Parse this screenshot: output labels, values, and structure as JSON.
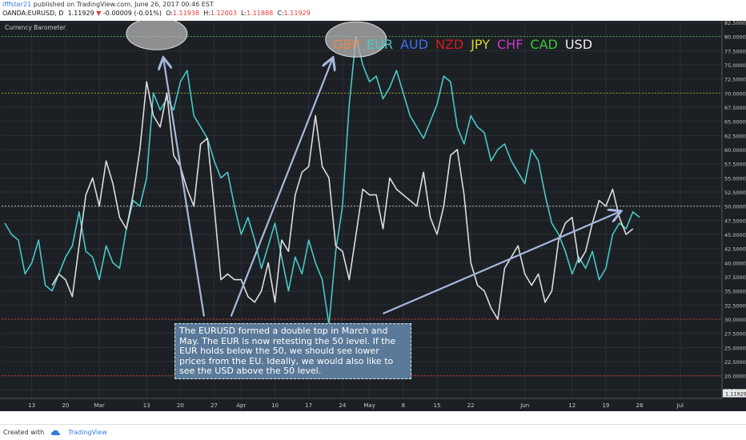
{
  "header": {
    "user": "ifffster21",
    "published": "published on TradingView.com, June 26, 2017 00:46 EST",
    "symbol": "OANDA:EURUSD, D",
    "price": "1.11929",
    "change": "-0.00009 (-0.01%)",
    "open_label": "O:",
    "open": "1.11938",
    "high_label": "H:",
    "high": "1.12003",
    "low_label": "L:",
    "low": "1.11888",
    "close_label": "C:",
    "close": "1.11929"
  },
  "footer": {
    "created_with": "Created with",
    "brand": "TradingView"
  },
  "chart_data": {
    "type": "line",
    "indicator_title": "Currency Barometer",
    "legend": [
      {
        "name": "GBP",
        "color": "#e8874a"
      },
      {
        "name": "EUR",
        "color": "#48c9c6"
      },
      {
        "name": "AUD",
        "color": "#3f6fe8"
      },
      {
        "name": "NZD",
        "color": "#d21e1e"
      },
      {
        "name": "JPY",
        "color": "#d8d828"
      },
      {
        "name": "CHF",
        "color": "#c83ac8"
      },
      {
        "name": "CAD",
        "color": "#38c838"
      },
      {
        "name": "USD",
        "color": "#eeeeee"
      }
    ],
    "ylim": [
      16,
      82.5
    ],
    "y_ticks": [
      "82.5000",
      "80.0000",
      "77.5000",
      "75.0000",
      "72.5000",
      "70.0000",
      "67.5000",
      "65.0000",
      "62.5000",
      "60.0000",
      "57.5000",
      "55.0000",
      "52.5000",
      "50.0000",
      "47.5000",
      "45.0000",
      "42.5000",
      "40.0000",
      "37.5000",
      "35.0000",
      "32.5000",
      "30.0000",
      "27.5000",
      "25.0000",
      "22.5000",
      "20.0000",
      "17.5000"
    ],
    "last_price_label": "1.11929",
    "levels": [
      {
        "value": 80,
        "color": "#3fa43f"
      },
      {
        "value": 70,
        "color": "#9a8a2a"
      },
      {
        "value": 50,
        "color": "#bbbbbb"
      },
      {
        "value": 30,
        "color": "#c0392b"
      },
      {
        "value": 20,
        "color": "#c0392b"
      }
    ],
    "x_ticks": [
      {
        "label": "13",
        "i": 4
      },
      {
        "label": "20",
        "i": 9
      },
      {
        "label": "Mar",
        "i": 14
      },
      {
        "label": "13",
        "i": 21
      },
      {
        "label": "20",
        "i": 26
      },
      {
        "label": "27",
        "i": 31
      },
      {
        "label": "Apr",
        "i": 35
      },
      {
        "label": "10",
        "i": 40
      },
      {
        "label": "17",
        "i": 45
      },
      {
        "label": "24",
        "i": 50
      },
      {
        "label": "May",
        "i": 54
      },
      {
        "label": "8",
        "i": 59
      },
      {
        "label": "15",
        "i": 64
      },
      {
        "label": "22",
        "i": 69
      },
      {
        "label": "Jun",
        "i": 77
      },
      {
        "label": "12",
        "i": 84
      },
      {
        "label": "19",
        "i": 89
      },
      {
        "label": "26",
        "i": 94
      },
      {
        "label": "Jul",
        "i": 100
      }
    ],
    "n_points": 105,
    "series": [
      {
        "name": "EUR",
        "color": "#48c9c6",
        "values": [
          47,
          45,
          44,
          38,
          40,
          44,
          36,
          35,
          38,
          41,
          43,
          49,
          42,
          41,
          37,
          43,
          40,
          39,
          46,
          51,
          50,
          55,
          70,
          67,
          69,
          67,
          72,
          74,
          66,
          64,
          62,
          58,
          55,
          56,
          50,
          45,
          48,
          44,
          39,
          43,
          47,
          41,
          35,
          41,
          38,
          44,
          40,
          37,
          29,
          42,
          50,
          68,
          80,
          75,
          72,
          73,
          69,
          71,
          74,
          70,
          66,
          64,
          62,
          65,
          68,
          73,
          72,
          64,
          61,
          66,
          64,
          63,
          58,
          60,
          61,
          58,
          56,
          54,
          60,
          58,
          52,
          47,
          45,
          42,
          38,
          41,
          39,
          42,
          37,
          39,
          45,
          47,
          46,
          49,
          48
        ],
        "start_i": 0
      },
      {
        "name": "USD",
        "color": "#dcdcdc",
        "values": [
          36,
          38,
          37,
          34,
          43,
          52,
          55,
          50,
          58,
          54,
          48,
          46,
          52,
          60,
          72,
          66,
          64,
          70,
          59,
          57,
          53,
          50,
          61,
          62,
          50,
          37,
          38,
          37,
          37,
          34,
          33,
          35,
          40,
          33,
          44,
          42,
          52,
          56,
          57,
          66,
          57,
          55,
          43,
          42,
          37,
          45,
          53,
          52,
          52,
          46,
          55,
          53,
          52,
          51,
          50,
          56,
          48,
          45,
          50,
          59,
          60,
          52,
          40,
          36,
          35,
          32,
          30,
          39,
          41,
          43,
          38,
          36,
          38,
          33,
          35,
          44,
          47,
          48,
          40,
          42,
          47,
          51,
          50,
          53,
          48,
          45,
          46
        ],
        "start_i": 7
      }
    ],
    "ellipses": [
      {
        "cx_i": 22.5,
        "cy_v": 80.5,
        "rx": 38,
        "ry": 20
      },
      {
        "cx_i": 52,
        "cy_v": 79.5,
        "rx": 38,
        "ry": 22
      }
    ],
    "arrows": [
      {
        "from_i": 29.5,
        "from_v": 30.5,
        "to_i": 23.5,
        "to_v": 76
      },
      {
        "from_i": 33.5,
        "from_v": 30.5,
        "to_i": 48.5,
        "to_v": 76
      },
      {
        "from_i": 56,
        "from_v": 31,
        "to_i": 91,
        "to_v": 49
      }
    ],
    "annotation": "The EURUSD formed a double top in March and May. The EUR is now retesting the 50 level. If the EUR holds below the 50, we should see lower prices from the EU. Ideally, we would also like to see the USD above the 50 level."
  }
}
